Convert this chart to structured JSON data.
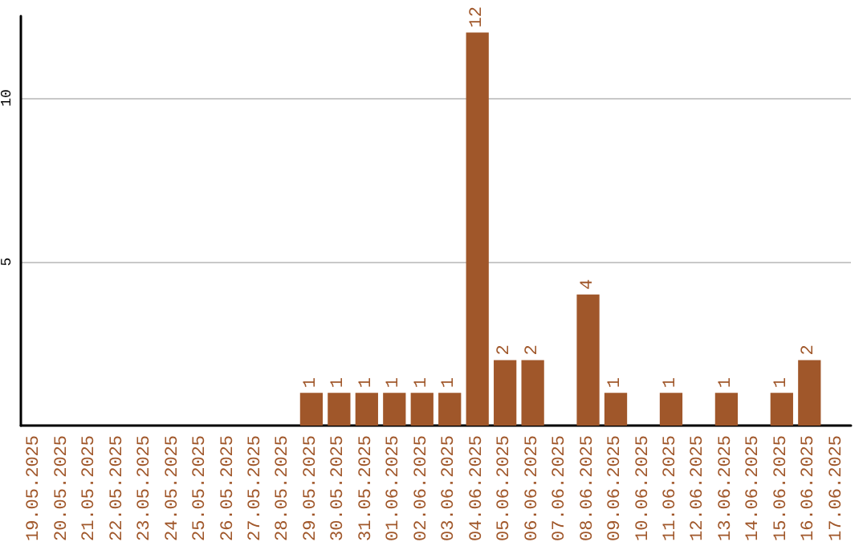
{
  "chart_data": {
    "type": "bar",
    "categories": [
      "19.05.2025",
      "20.05.2025",
      "21.05.2025",
      "22.05.2025",
      "23.05.2025",
      "24.05.2025",
      "25.05.2025",
      "26.05.2025",
      "27.05.2025",
      "28.05.2025",
      "29.05.2025",
      "30.05.2025",
      "31.05.2025",
      "01.06.2025",
      "02.06.2025",
      "03.06.2025",
      "04.06.2025",
      "05.06.2025",
      "06.06.2025",
      "07.06.2025",
      "08.06.2025",
      "09.06.2025",
      "10.06.2025",
      "11.06.2025",
      "12.06.2025",
      "13.06.2025",
      "14.06.2025",
      "15.06.2025",
      "16.06.2025",
      "17.06.2025"
    ],
    "values": [
      0,
      0,
      0,
      0,
      0,
      0,
      0,
      0,
      0,
      0,
      1,
      1,
      1,
      1,
      1,
      1,
      12,
      2,
      2,
      0,
      4,
      1,
      0,
      1,
      0,
      1,
      0,
      1,
      2,
      0
    ],
    "value_labels": [
      null,
      null,
      null,
      null,
      null,
      null,
      null,
      null,
      null,
      null,
      "1",
      "1",
      "1",
      "1",
      "1",
      "1",
      "12",
      "2",
      "2",
      null,
      "4",
      "1",
      null,
      "1",
      null,
      "1",
      null,
      "1",
      "2",
      null
    ],
    "color": "#a0572a",
    "ylim": [
      0,
      12.5
    ],
    "yticks": [
      5,
      10
    ],
    "grid": "y"
  }
}
